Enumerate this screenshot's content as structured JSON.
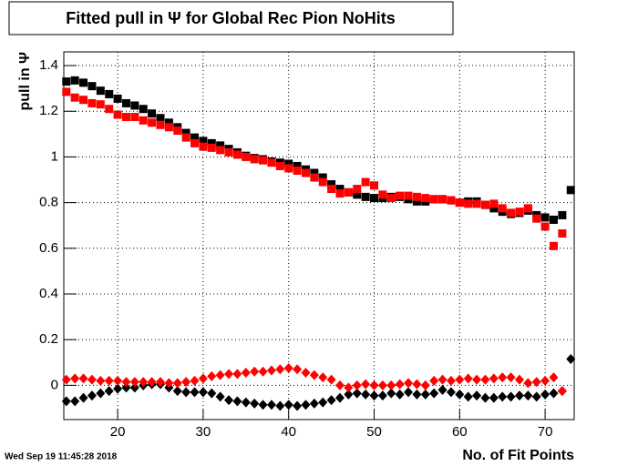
{
  "chart_data": {
    "type": "scatter",
    "title": "Fitted pull in  Ψ  for Global Rec Pion NoHits",
    "y_label": "pull in Ψ",
    "x_label": "No. of Fit Points",
    "footer": "Wed Sep 19 11:45:28 2018",
    "x": [
      14,
      15,
      16,
      17,
      18,
      19,
      20,
      21,
      22,
      23,
      24,
      25,
      26,
      27,
      28,
      29,
      30,
      31,
      32,
      33,
      34,
      35,
      36,
      37,
      38,
      39,
      40,
      41,
      42,
      43,
      44,
      45,
      46,
      47,
      48,
      49,
      50,
      51,
      52,
      53,
      54,
      55,
      56,
      57,
      58,
      59,
      60,
      61,
      62,
      63,
      64,
      65,
      66,
      67,
      68,
      69,
      70,
      71,
      72,
      73
    ],
    "series": [
      {
        "color": "#000000",
        "marker": "square",
        "values": [
          1.33,
          1.335,
          1.325,
          1.31,
          1.29,
          1.275,
          1.255,
          1.235,
          1.225,
          1.21,
          1.19,
          1.17,
          1.15,
          1.13,
          1.105,
          1.085,
          1.07,
          1.06,
          1.05,
          1.035,
          1.02,
          1.005,
          0.995,
          0.99,
          0.98,
          0.975,
          0.97,
          0.96,
          0.945,
          0.93,
          0.91,
          0.88,
          0.86,
          0.845,
          0.835,
          0.825,
          0.82,
          0.82,
          0.825,
          0.825,
          0.815,
          0.805,
          0.805,
          0.815,
          0.815,
          0.81,
          0.8,
          0.805,
          0.805,
          0.79,
          0.775,
          0.76,
          0.75,
          0.755,
          0.765,
          0.745,
          0.735,
          0.725,
          0.745,
          0.855
        ]
      },
      {
        "color": "#ff0000",
        "marker": "square",
        "values": [
          1.285,
          1.26,
          1.25,
          1.235,
          1.23,
          1.21,
          1.185,
          1.175,
          1.175,
          1.16,
          1.15,
          1.14,
          1.13,
          1.115,
          1.085,
          1.06,
          1.045,
          1.04,
          1.03,
          1.02,
          1.01,
          1.0,
          0.99,
          0.985,
          0.975,
          0.96,
          0.95,
          0.94,
          0.93,
          0.91,
          0.89,
          0.86,
          0.84,
          0.845,
          0.86,
          0.89,
          0.875,
          0.835,
          0.82,
          0.83,
          0.83,
          0.825,
          0.82,
          0.815,
          0.815,
          0.81,
          0.8,
          0.795,
          0.795,
          0.79,
          0.795,
          0.775,
          0.755,
          0.76,
          0.775,
          0.73,
          0.695,
          0.61,
          0.665,
          null
        ]
      },
      {
        "color": "#000000",
        "marker": "diamond",
        "values": [
          -0.07,
          -0.07,
          -0.055,
          -0.045,
          -0.035,
          -0.025,
          -0.015,
          -0.01,
          -0.01,
          0.0,
          0.005,
          0.005,
          -0.01,
          -0.025,
          -0.03,
          -0.03,
          -0.03,
          -0.035,
          -0.05,
          -0.065,
          -0.07,
          -0.075,
          -0.08,
          -0.085,
          -0.085,
          -0.09,
          -0.085,
          -0.09,
          -0.085,
          -0.08,
          -0.075,
          -0.065,
          -0.055,
          -0.04,
          -0.035,
          -0.04,
          -0.045,
          -0.045,
          -0.035,
          -0.04,
          -0.03,
          -0.04,
          -0.04,
          -0.035,
          -0.02,
          -0.03,
          -0.04,
          -0.05,
          -0.045,
          -0.055,
          -0.055,
          -0.05,
          -0.05,
          -0.045,
          -0.045,
          -0.05,
          -0.04,
          -0.035,
          -0.025,
          0.115
        ]
      },
      {
        "color": "#ff0000",
        "marker": "diamond",
        "values": [
          0.025,
          0.03,
          0.03,
          0.025,
          0.02,
          0.02,
          0.02,
          0.015,
          0.015,
          0.015,
          0.015,
          0.015,
          0.01,
          0.01,
          0.015,
          0.02,
          0.03,
          0.04,
          0.045,
          0.05,
          0.05,
          0.055,
          0.06,
          0.06,
          0.065,
          0.07,
          0.075,
          0.07,
          0.055,
          0.045,
          0.035,
          0.025,
          0.0,
          -0.01,
          0.0,
          0.005,
          0.0,
          0.0,
          0.0,
          0.005,
          0.01,
          0.005,
          0.0,
          0.02,
          0.025,
          0.02,
          0.025,
          0.03,
          0.025,
          0.025,
          0.03,
          0.035,
          0.035,
          0.025,
          0.01,
          0.015,
          0.02,
          0.035,
          -0.025,
          null
        ]
      }
    ],
    "xlim": [
      13.7,
      73.4
    ],
    "xticks": [
      20,
      30,
      40,
      50,
      60,
      70
    ],
    "ylim": [
      -0.15,
      1.46
    ],
    "yticks": [
      0,
      0.2,
      0.4,
      0.6,
      0.8,
      1,
      1.2,
      1.4
    ],
    "grid": true
  }
}
